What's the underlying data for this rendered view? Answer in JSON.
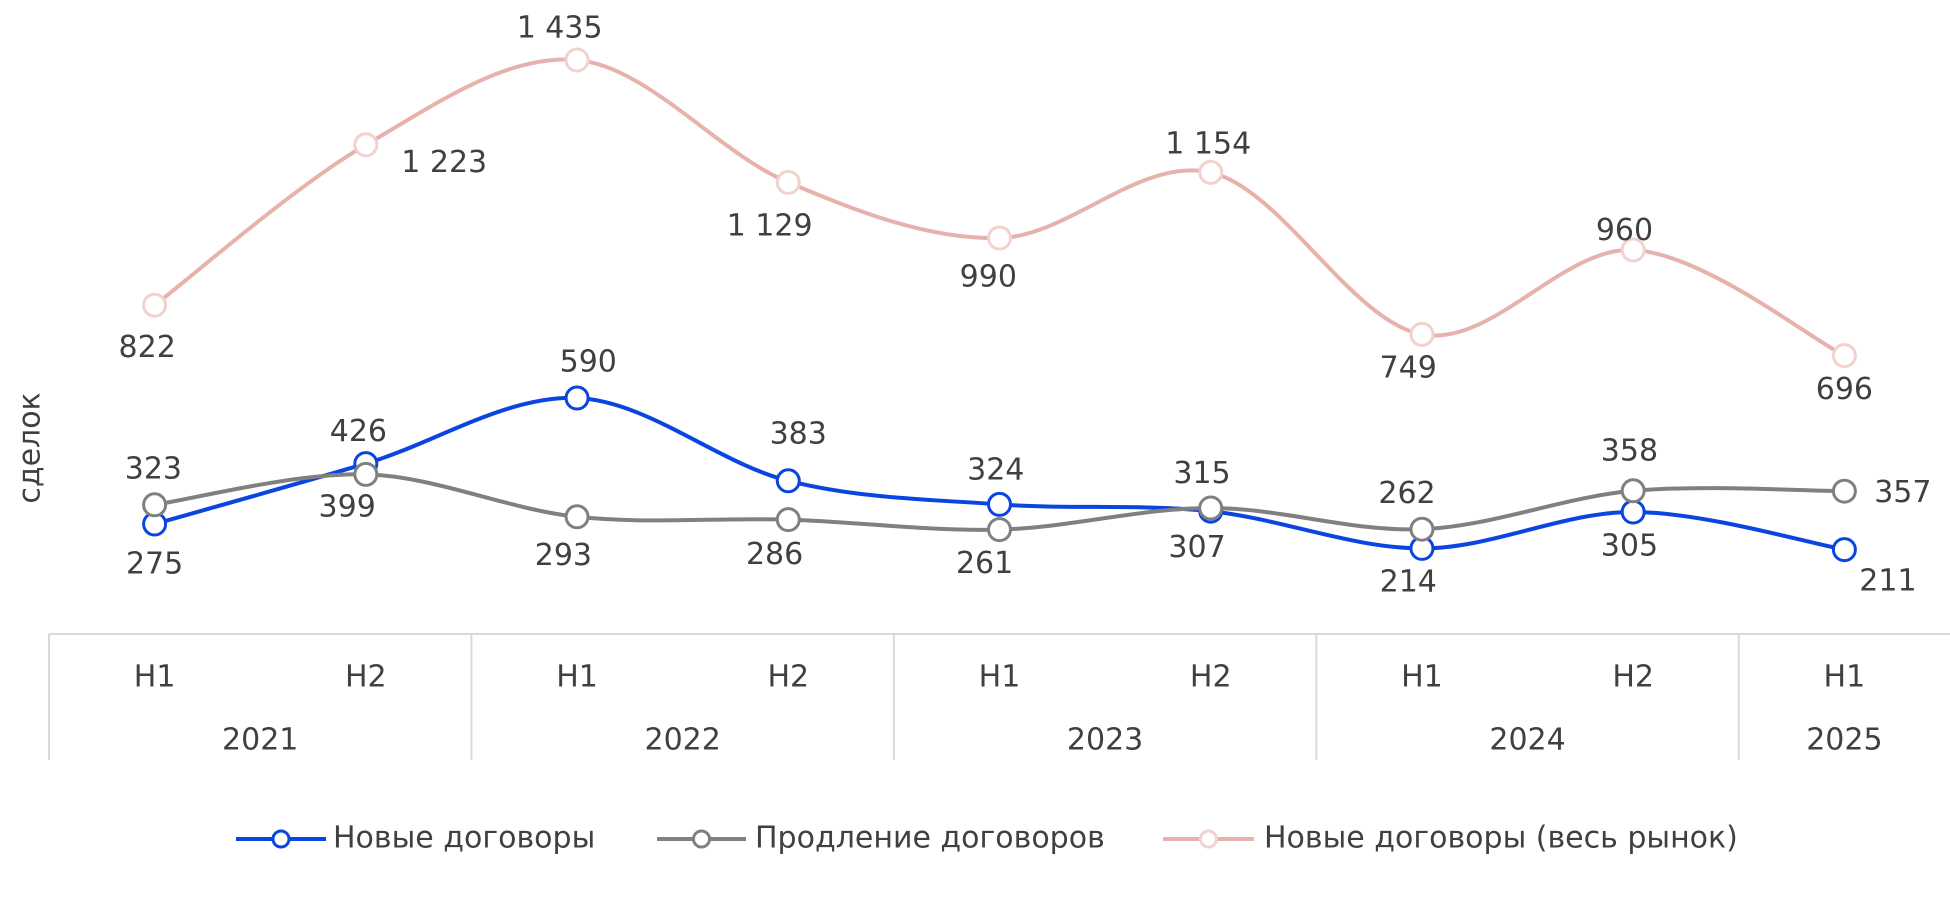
{
  "chart_data": {
    "type": "line",
    "y_label": "сделок",
    "categories": [
      "H1",
      "H2",
      "H1",
      "H2",
      "H1",
      "H2",
      "H1",
      "H2",
      "H1"
    ],
    "category_groups": [
      {
        "label": "2021",
        "size": 2
      },
      {
        "label": "2022",
        "size": 2
      },
      {
        "label": "2023",
        "size": 2
      },
      {
        "label": "2024",
        "size": 2
      },
      {
        "label": "2025",
        "size": 1
      }
    ],
    "ylim": [
      0,
      1600
    ],
    "smooth": true,
    "series": [
      {
        "name": "Новые договоры",
        "color": "#0a45e0",
        "marker_stroke": "#0a45e0",
        "values": [
          275,
          426,
          590,
          383,
          324,
          307,
          214,
          305,
          211
        ]
      },
      {
        "name": "Продление договоров",
        "color": "#808080",
        "marker_stroke": "#808080",
        "values": [
          323,
          399,
          293,
          286,
          261,
          315,
          262,
          358,
          357
        ]
      },
      {
        "name": "Новые договоры (весь рынок)",
        "color": "#e8b2ac",
        "marker_stroke": "#f2d2ce",
        "values": [
          822,
          1223,
          1435,
          1129,
          990,
          1154,
          749,
          960,
          696
        ],
        "value_labels": [
          "822",
          "1 223",
          "1 435",
          "1 129",
          "990",
          "1 154",
          "749",
          "960",
          "696"
        ]
      }
    ]
  }
}
